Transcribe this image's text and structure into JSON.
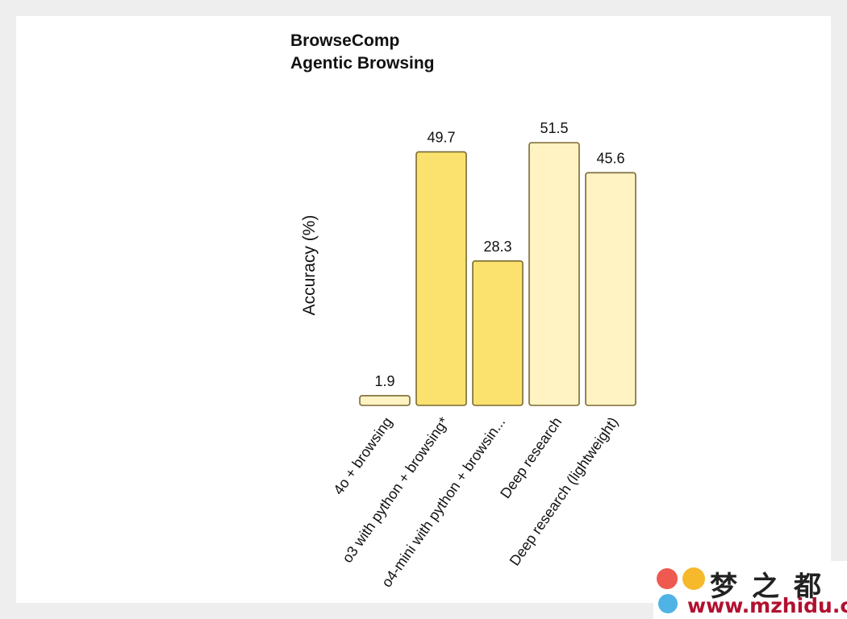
{
  "chart_data": {
    "type": "bar",
    "title_lines": [
      "BrowseComp",
      "Agentic Browsing"
    ],
    "ylabel": "Accuracy (%)",
    "xlabel": "",
    "ylim": [
      0,
      55
    ],
    "categories": [
      "4o + browsing",
      "o3 with python + browsing*",
      "o4-mini with python + browsin...",
      "Deep research",
      "Deep research (lightweight)"
    ],
    "values": [
      1.9,
      49.7,
      28.3,
      51.5,
      45.6
    ],
    "value_labels": [
      "1.9",
      "49.7",
      "28.3",
      "51.5",
      "45.6"
    ],
    "bar_colors": [
      "#fff3c4",
      "#fbe26f",
      "#fbe26f",
      "#fff3c4",
      "#fff3c4"
    ],
    "bar_stroke": "#7a6a32"
  },
  "watermark": {
    "text_cn": "梦之都",
    "url": "www.mzhidu.com"
  }
}
